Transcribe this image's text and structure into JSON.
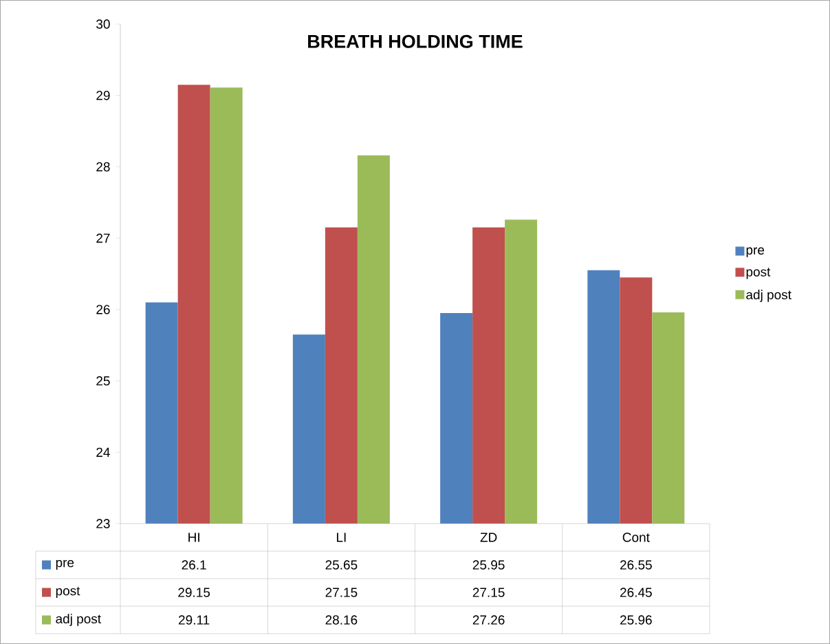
{
  "chart_data": {
    "type": "bar",
    "title": "BREATH HOLDING TIME",
    "categories": [
      "HI",
      "LI",
      "ZD",
      "Cont"
    ],
    "series": [
      {
        "name": "pre",
        "color": "#4f81bd",
        "values": [
          26.1,
          25.65,
          25.95,
          26.55
        ]
      },
      {
        "name": "post",
        "color": "#c0504d",
        "values": [
          29.15,
          27.15,
          27.15,
          26.45
        ]
      },
      {
        "name": "adj post",
        "color": "#9bbb59",
        "values": [
          29.11,
          28.16,
          27.26,
          25.96
        ]
      }
    ],
    "ylim": [
      23,
      30
    ],
    "yticks": [
      23,
      24,
      25,
      26,
      27,
      28,
      29,
      30
    ],
    "data_labels": true,
    "legend": "right"
  }
}
